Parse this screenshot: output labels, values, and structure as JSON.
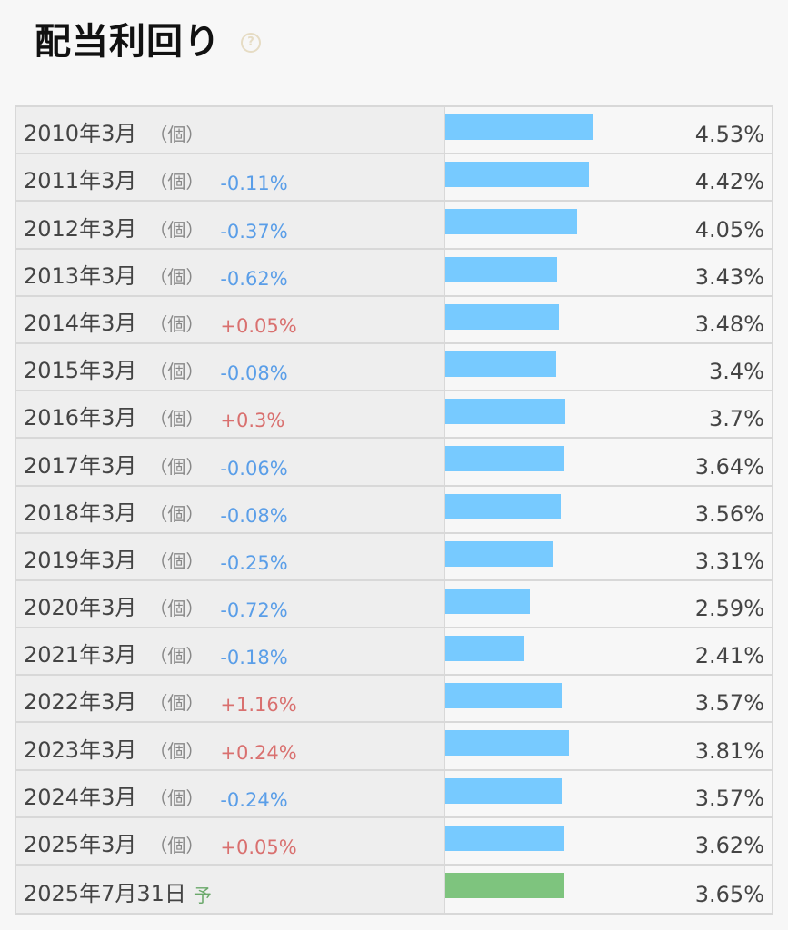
{
  "header": {
    "title": "配当利回り",
    "help_icon": "?"
  },
  "colors": {
    "bar": "#77caff",
    "forecast_bar": "#7ec47e",
    "negative_change": "#5a9ee8",
    "positive_change": "#d9706f"
  },
  "rows": [
    {
      "period": "2010年3月",
      "unit": "（個）",
      "change": "",
      "value": "4.53%",
      "ratio": 4.53,
      "forecast": false
    },
    {
      "period": "2011年3月",
      "unit": "（個）",
      "change": "-0.11%",
      "value": "4.42%",
      "ratio": 4.42,
      "forecast": false
    },
    {
      "period": "2012年3月",
      "unit": "（個）",
      "change": "-0.37%",
      "value": "4.05%",
      "ratio": 4.05,
      "forecast": false
    },
    {
      "period": "2013年3月",
      "unit": "（個）",
      "change": "-0.62%",
      "value": "3.43%",
      "ratio": 3.43,
      "forecast": false
    },
    {
      "period": "2014年3月",
      "unit": "（個）",
      "change": "+0.05%",
      "value": "3.48%",
      "ratio": 3.48,
      "forecast": false
    },
    {
      "period": "2015年3月",
      "unit": "（個）",
      "change": "-0.08%",
      "value": "3.4%",
      "ratio": 3.4,
      "forecast": false
    },
    {
      "period": "2016年3月",
      "unit": "（個）",
      "change": "+0.3%",
      "value": "3.7%",
      "ratio": 3.7,
      "forecast": false
    },
    {
      "period": "2017年3月",
      "unit": "（個）",
      "change": "-0.06%",
      "value": "3.64%",
      "ratio": 3.64,
      "forecast": false
    },
    {
      "period": "2018年3月",
      "unit": "（個）",
      "change": "-0.08%",
      "value": "3.56%",
      "ratio": 3.56,
      "forecast": false
    },
    {
      "period": "2019年3月",
      "unit": "（個）",
      "change": "-0.25%",
      "value": "3.31%",
      "ratio": 3.31,
      "forecast": false
    },
    {
      "period": "2020年3月",
      "unit": "（個）",
      "change": "-0.72%",
      "value": "2.59%",
      "ratio": 2.59,
      "forecast": false
    },
    {
      "period": "2021年3月",
      "unit": "（個）",
      "change": "-0.18%",
      "value": "2.41%",
      "ratio": 2.41,
      "forecast": false
    },
    {
      "period": "2022年3月",
      "unit": "（個）",
      "change": "+1.16%",
      "value": "3.57%",
      "ratio": 3.57,
      "forecast": false
    },
    {
      "period": "2023年3月",
      "unit": "（個）",
      "change": "+0.24%",
      "value": "3.81%",
      "ratio": 3.81,
      "forecast": false
    },
    {
      "period": "2024年3月",
      "unit": "（個）",
      "change": "-0.24%",
      "value": "3.57%",
      "ratio": 3.57,
      "forecast": false
    },
    {
      "period": "2025年3月",
      "unit": "（個）",
      "change": "+0.05%",
      "value": "3.62%",
      "ratio": 3.62,
      "forecast": false
    },
    {
      "period": "2025年7月31日",
      "unit": "",
      "change": "",
      "value": "3.65%",
      "ratio": 3.65,
      "forecast": true,
      "forecast_label": "予"
    }
  ]
}
